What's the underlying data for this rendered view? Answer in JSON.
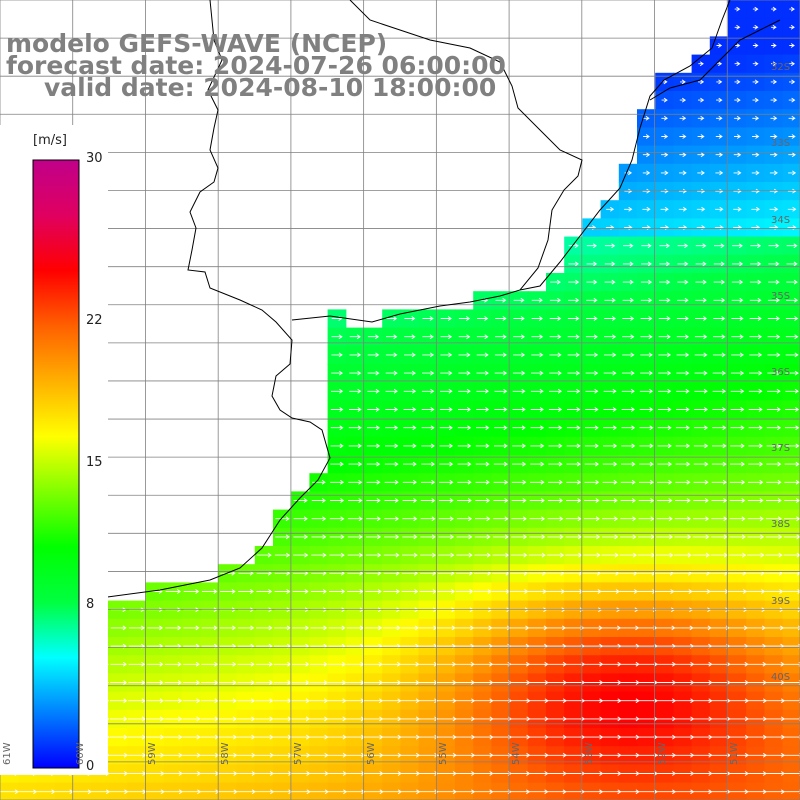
{
  "title": {
    "line1": "modelo GEFS-WAVE (NCEP)",
    "line2": "forecast date: 2024-07-26 06:00:00",
    "line3": "valid date: 2024-08-10 18:00:00"
  },
  "colorbar": {
    "unit": "[m/s]",
    "min": 0,
    "max": 30,
    "ticks": [
      "30",
      "22",
      "15",
      "8",
      "0"
    ],
    "tick_values": [
      30,
      22,
      15,
      8,
      0
    ],
    "colors": [
      "#0000ff",
      "#0080ff",
      "#00ffff",
      "#00ff40",
      "#00ff00",
      "#80ff00",
      "#ffff00",
      "#ffb000",
      "#ff6000",
      "#ff0000",
      "#e00060",
      "#c0008a"
    ]
  },
  "map": {
    "variable": "wind speed",
    "lon_range": [
      -61,
      -50
    ],
    "lat_range": [
      -41.5,
      -31
    ],
    "lat_labels": [
      "32S",
      "33S",
      "34S",
      "35S",
      "36S",
      "37S",
      "38S",
      "39S",
      "40S"
    ],
    "lat_values": [
      -32,
      -33,
      -34,
      -35,
      -36,
      -37,
      -38,
      -39,
      -40
    ],
    "lon_labels": [
      "61W",
      "60W",
      "59W",
      "58W",
      "57W",
      "56W",
      "55W",
      "54W",
      "53W",
      "52W",
      "51W"
    ],
    "lon_values": [
      -61,
      -60,
      -59,
      -58,
      -57,
      -56,
      -55,
      -54,
      -53,
      -52,
      -51
    ],
    "land_color": "#ffffff",
    "coast_color": "#000000",
    "grid_color": "#808080",
    "arrow_color": "#ffffff"
  }
}
